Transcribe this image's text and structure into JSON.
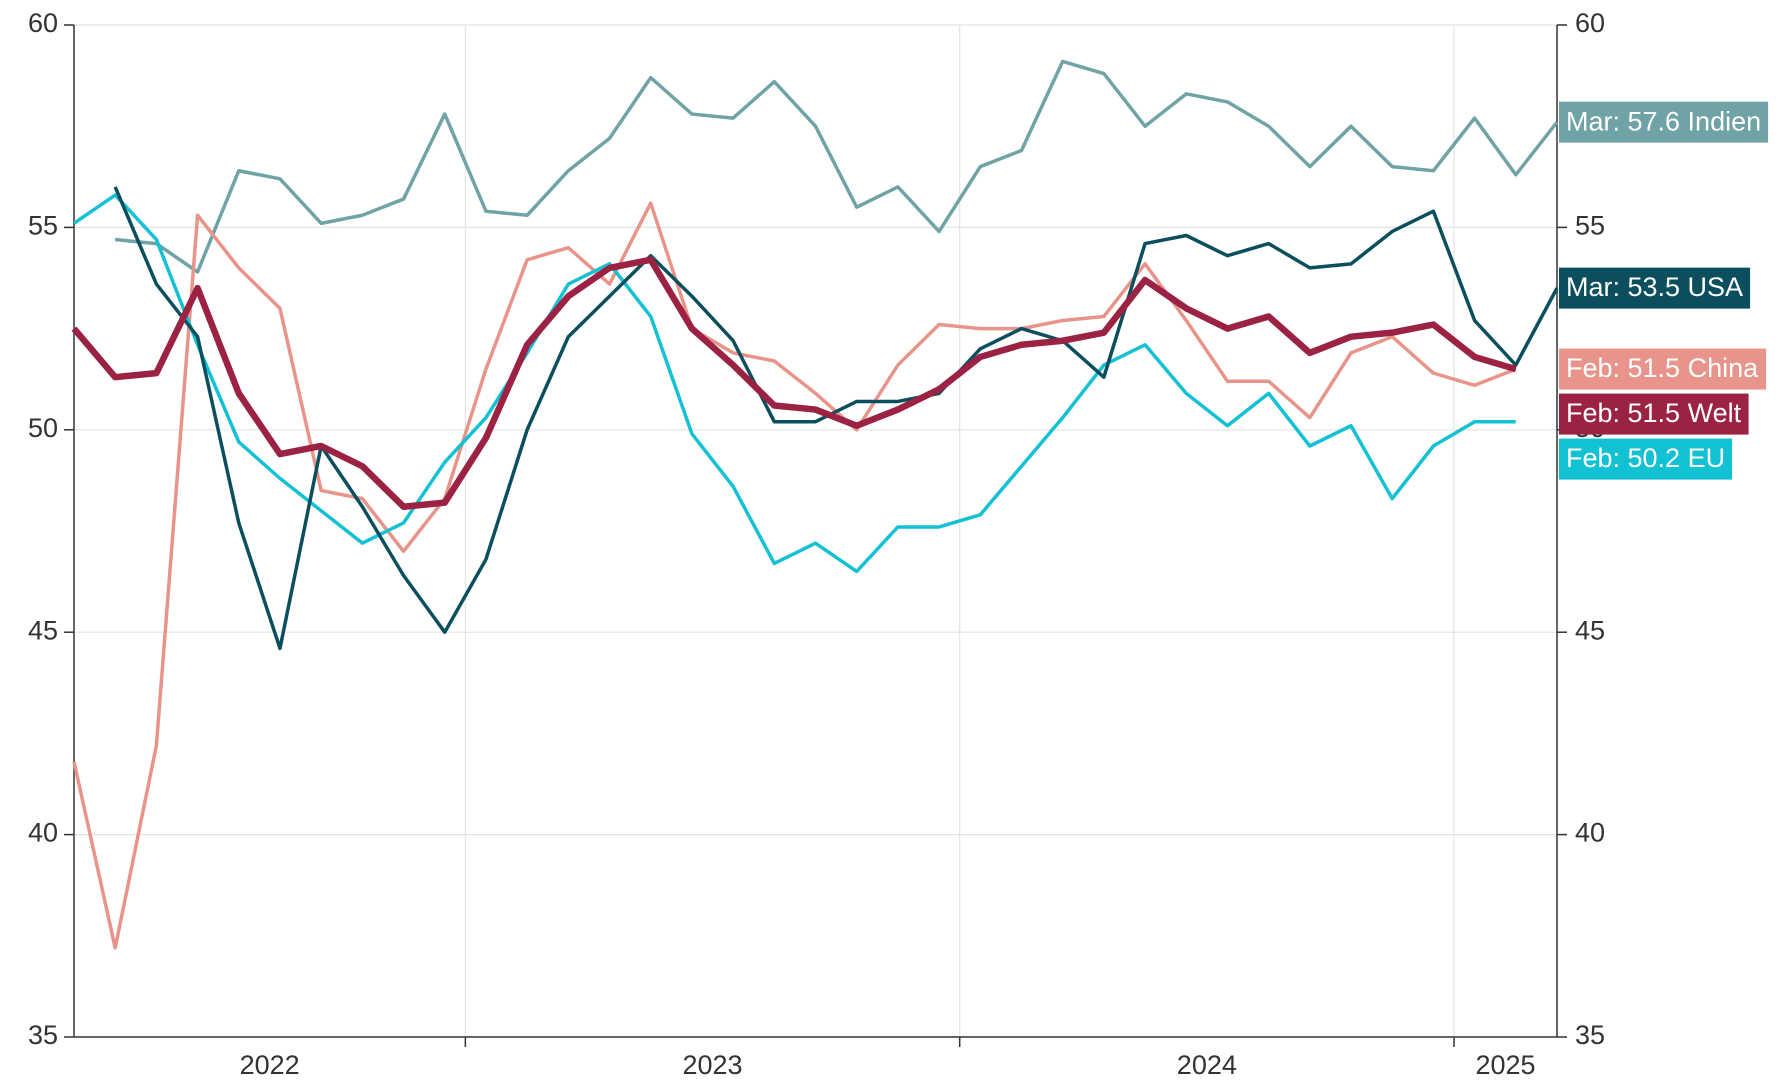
{
  "chart_data": {
    "type": "line",
    "x": [
      "2022-03",
      "2022-04",
      "2022-05",
      "2022-06",
      "2022-07",
      "2022-08",
      "2022-09",
      "2022-10",
      "2022-11",
      "2022-12",
      "2023-01",
      "2023-02",
      "2023-03",
      "2023-04",
      "2023-05",
      "2023-06",
      "2023-07",
      "2023-08",
      "2023-09",
      "2023-10",
      "2023-11",
      "2023-12",
      "2024-01",
      "2024-02",
      "2024-03",
      "2024-04",
      "2024-05",
      "2024-06",
      "2024-07",
      "2024-08",
      "2024-09",
      "2024-10",
      "2024-11",
      "2024-12",
      "2025-01",
      "2025-02",
      "2025-03"
    ],
    "xticks": [
      2022,
      2023,
      2024,
      2025
    ],
    "ylim": [
      35,
      60
    ],
    "yticks": [
      35,
      40,
      45,
      50,
      55,
      60
    ],
    "y2lim": [
      35,
      60
    ],
    "y2ticks": [
      35,
      40,
      45,
      50,
      55,
      60
    ],
    "grid": true,
    "series": [
      {
        "name": "Indien",
        "label": "Mar: 57.6 Indien",
        "color": "#6fa3a6",
        "width": 3.5,
        "values": [
          null,
          54.7,
          54.6,
          53.9,
          56.4,
          56.2,
          55.1,
          55.3,
          55.7,
          57.8,
          55.4,
          55.3,
          56.4,
          57.2,
          58.7,
          57.8,
          57.7,
          58.6,
          57.5,
          55.5,
          56.0,
          54.9,
          56.5,
          56.9,
          59.1,
          58.8,
          57.5,
          58.3,
          58.1,
          57.5,
          56.5,
          57.5,
          56.5,
          56.4,
          57.7,
          56.3,
          57.6
        ]
      },
      {
        "name": "China",
        "label": "Feb: 51.5 China",
        "color": "#e8948a",
        "width": 3.5,
        "values": [
          41.8,
          37.2,
          42.2,
          55.3,
          54.0,
          53.0,
          48.5,
          48.3,
          47.0,
          48.3,
          51.5,
          54.2,
          54.5,
          53.6,
          55.6,
          52.5,
          51.9,
          51.7,
          50.9,
          50.0,
          51.6,
          52.6,
          52.5,
          52.5,
          52.7,
          52.8,
          54.1,
          52.7,
          51.2,
          51.2,
          50.3,
          51.9,
          52.3,
          51.4,
          51.1,
          51.5,
          null
        ]
      },
      {
        "name": "EU",
        "label": "Feb: 50.2 EU",
        "color": "#12c1d3",
        "width": 3.5,
        "values": [
          55.1,
          55.8,
          54.7,
          52.1,
          49.7,
          48.8,
          48.0,
          47.2,
          47.7,
          49.2,
          50.3,
          51.9,
          53.6,
          54.1,
          52.8,
          49.9,
          48.6,
          46.7,
          47.2,
          46.5,
          47.6,
          47.6,
          47.9,
          49.1,
          50.3,
          51.6,
          52.1,
          50.9,
          50.1,
          50.9,
          49.6,
          50.1,
          48.3,
          49.6,
          50.2,
          50.2,
          null
        ]
      },
      {
        "name": "USA",
        "label": "Mar: 53.5 USA",
        "color": "#0b4f5f",
        "width": 3.5,
        "values": [
          null,
          56.0,
          53.6,
          52.3,
          47.7,
          44.6,
          49.6,
          48.1,
          46.4,
          45.0,
          46.8,
          50.0,
          52.3,
          53.3,
          54.3,
          53.3,
          52.2,
          50.2,
          50.2,
          50.7,
          50.7,
          50.9,
          52.0,
          52.5,
          52.2,
          51.3,
          54.6,
          54.8,
          54.3,
          54.6,
          54.0,
          54.1,
          54.9,
          55.4,
          52.7,
          51.6,
          53.5
        ]
      },
      {
        "name": "Welt",
        "label": "Feb: 51.5 Welt",
        "color": "#9b2242",
        "width": 6.5,
        "values": [
          52.5,
          51.3,
          51.4,
          53.5,
          50.9,
          49.4,
          49.6,
          49.1,
          48.1,
          48.2,
          49.8,
          52.1,
          53.3,
          54.0,
          54.2,
          52.5,
          51.6,
          50.6,
          50.5,
          50.1,
          50.5,
          51.0,
          51.8,
          52.1,
          52.2,
          52.4,
          53.7,
          53.0,
          52.5,
          52.8,
          51.9,
          52.3,
          52.4,
          52.6,
          51.8,
          51.5,
          null
        ]
      }
    ]
  }
}
